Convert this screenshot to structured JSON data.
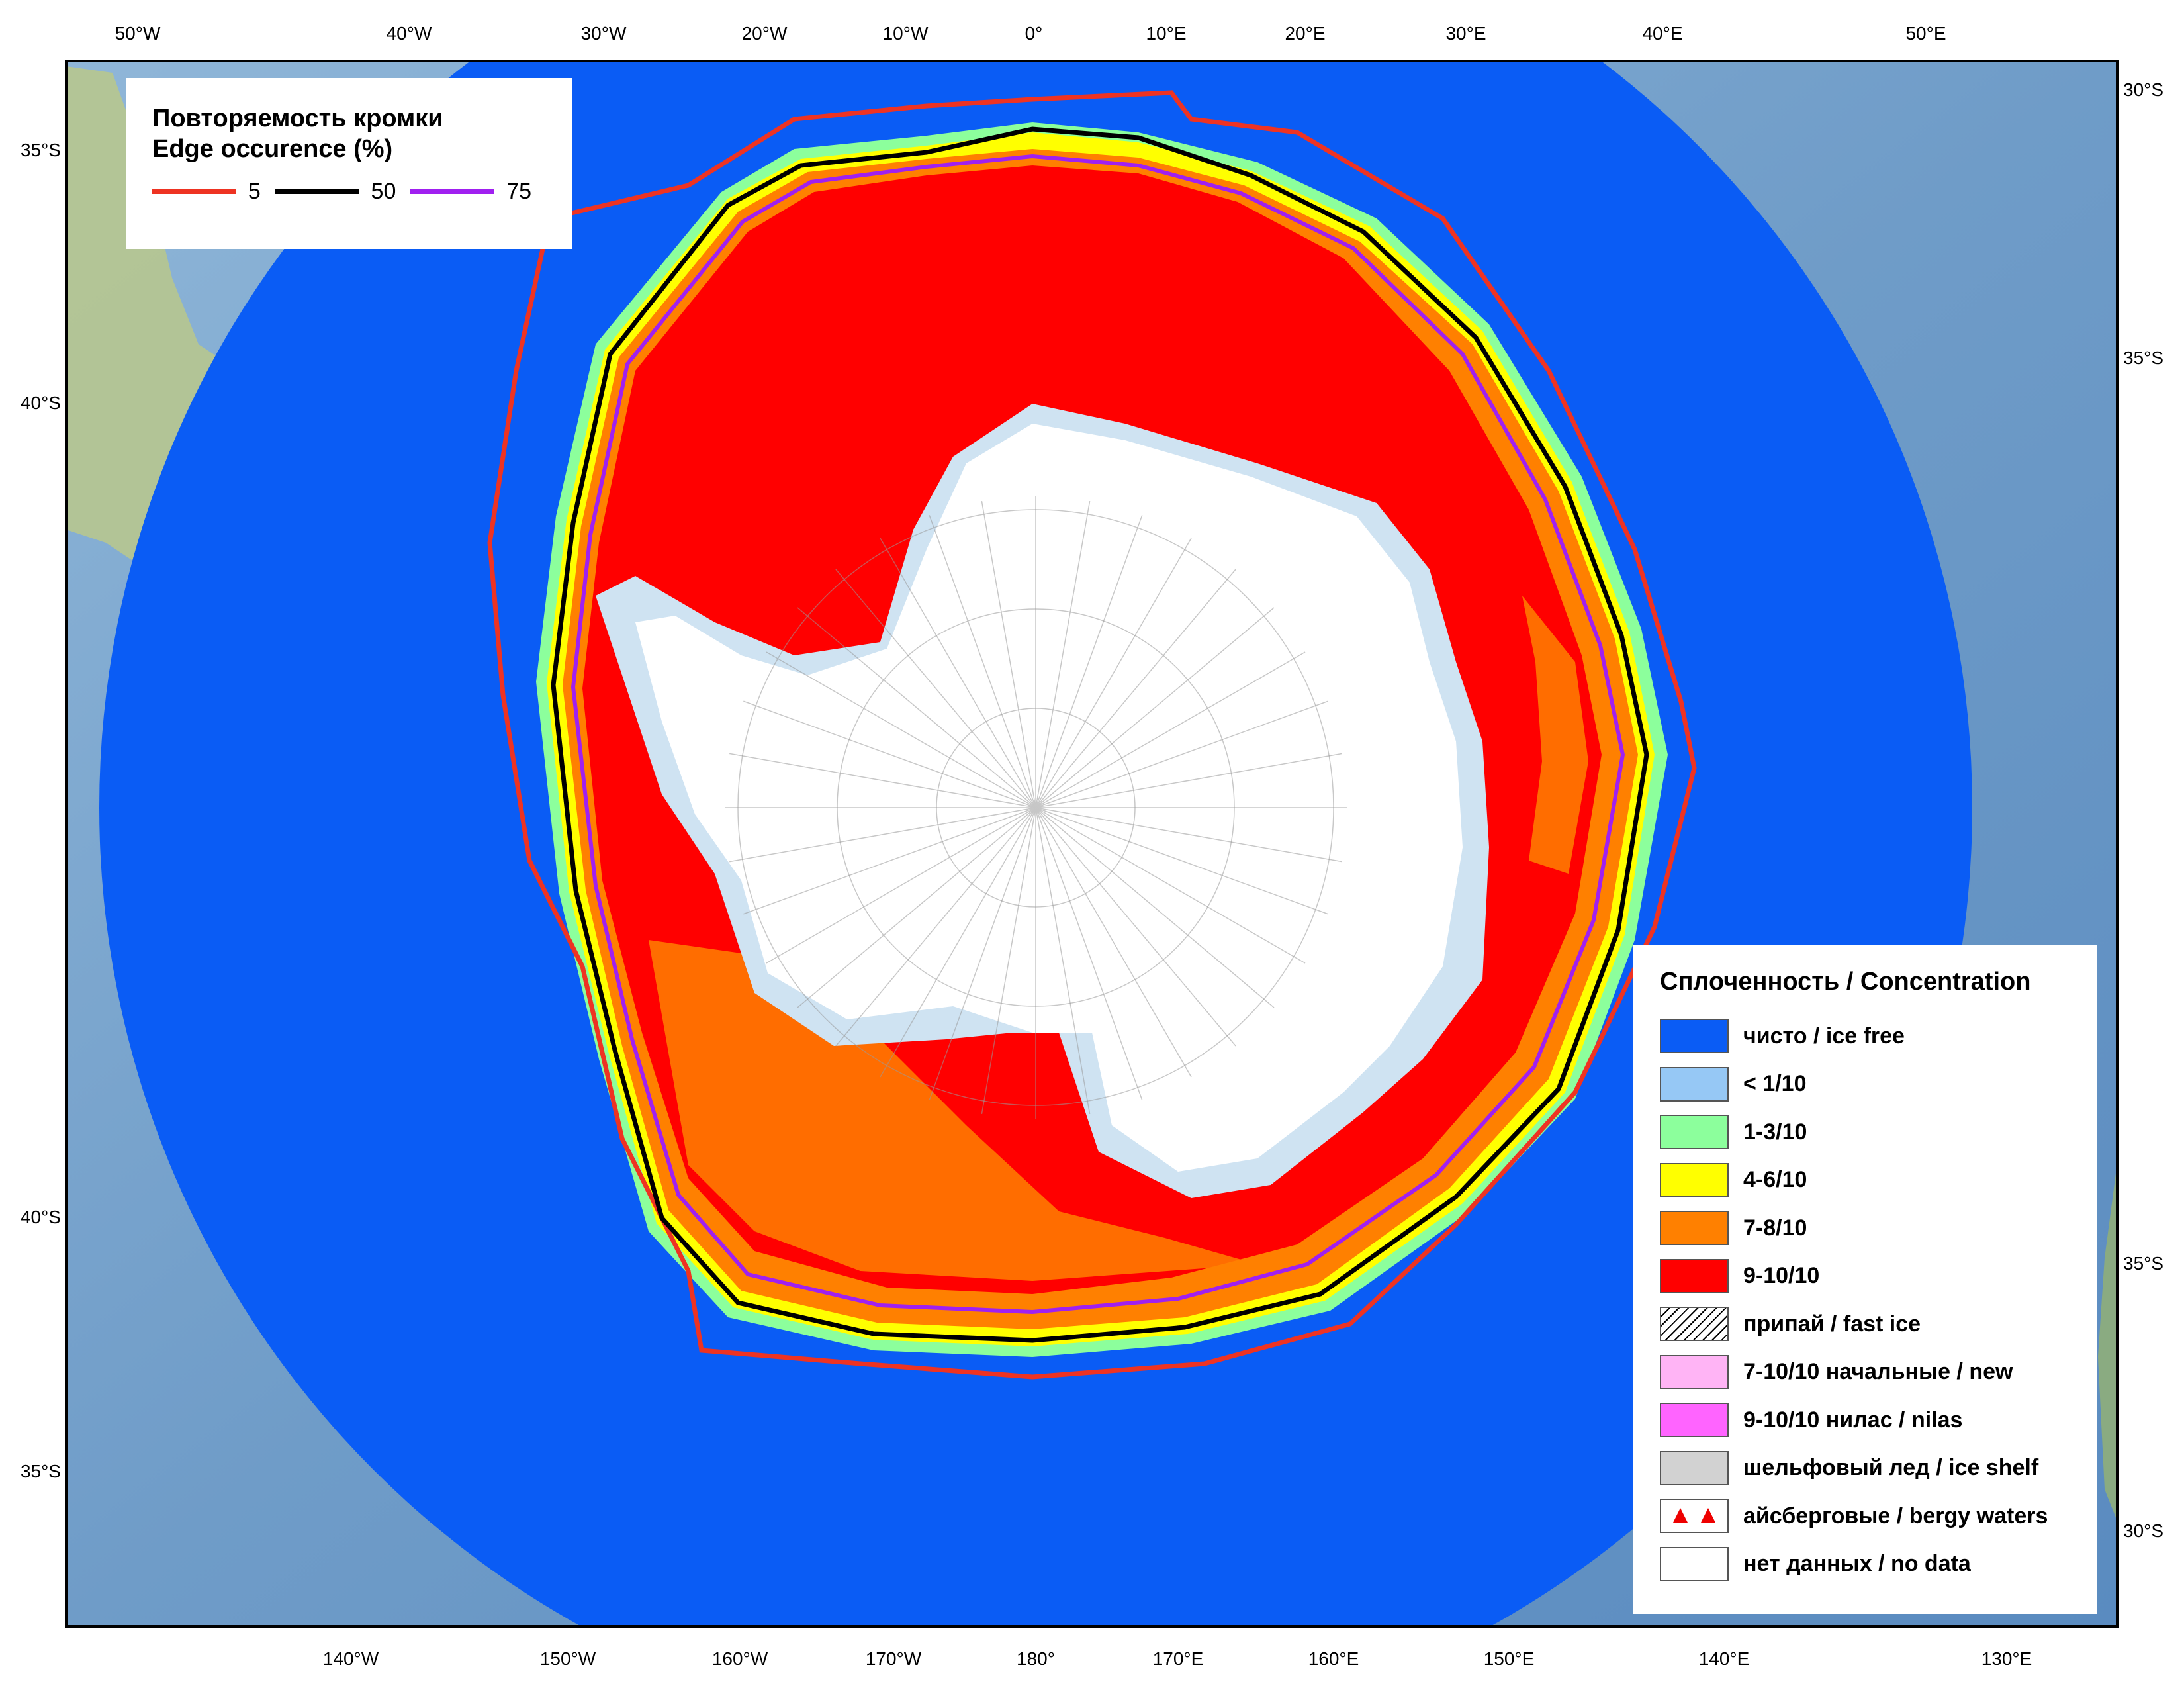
{
  "edge_legend": {
    "title_ru": "Повторяемость кромки",
    "title_en": "Edge occurence (%)",
    "lines": [
      {
        "value": "5",
        "color": "#ee3322"
      },
      {
        "value": "50",
        "color": "#000000"
      },
      {
        "value": "75",
        "color": "#a020f0"
      }
    ]
  },
  "concentration_legend": {
    "title": "Сплоченность / Concentration",
    "items": [
      {
        "label": "чисто / ice free",
        "color": "#0a5cf5",
        "style": "fill"
      },
      {
        "label": "< 1/10",
        "color": "#96c8f5",
        "style": "fill"
      },
      {
        "label": "1-3/10",
        "color": "#8cff9c",
        "style": "fill"
      },
      {
        "label": "4-6/10",
        "color": "#ffff00",
        "style": "fill"
      },
      {
        "label": "7-8/10",
        "color": "#ff8000",
        "style": "fill"
      },
      {
        "label": "9-10/10",
        "color": "#ff0000",
        "style": "fill"
      },
      {
        "label": "припай / fast ice",
        "color": "#ffffff",
        "style": "hatch"
      },
      {
        "label": "7-10/10 начальные / new",
        "color": "#ffb4f5",
        "style": "fill"
      },
      {
        "label": "9-10/10 нилас / nilas",
        "color": "#ff64ff",
        "style": "fill"
      },
      {
        "label": "шельфовый лед / ice shelf",
        "color": "#d2d2d2",
        "style": "fill"
      },
      {
        "label": "айсберговые / bergy waters",
        "color": "#ffffff",
        "style": "berg"
      },
      {
        "label": "нет данных / no data",
        "color": "#ffffff",
        "style": "fill"
      }
    ]
  },
  "axis_labels": {
    "top": [
      "50°W",
      "40°W",
      "30°W",
      "20°W",
      "10°W",
      "0°",
      "10°E",
      "20°E",
      "30°E",
      "40°E",
      "50°E"
    ],
    "bottom": [
      "140°W",
      "150°W",
      "160°W",
      "170°W",
      "180°",
      "170°E",
      "160°E",
      "150°E",
      "140°E",
      "130°E"
    ],
    "left": [
      "35°S",
      "40°S",
      "40°S",
      "35°S"
    ],
    "right": [
      "30°S",
      "35°S",
      "35°S",
      "30°S"
    ]
  },
  "colors": {
    "ocean": "#0a5cf5",
    "ice_9_10": "#ff0000",
    "ice_7_8": "#ff8000",
    "ice_4_6": "#ffff00",
    "ice_1_3": "#8cff9c",
    "ice_lt1": "#96c8f5",
    "land": "#ffffff",
    "ice_shelf": "#d6e8f5"
  }
}
